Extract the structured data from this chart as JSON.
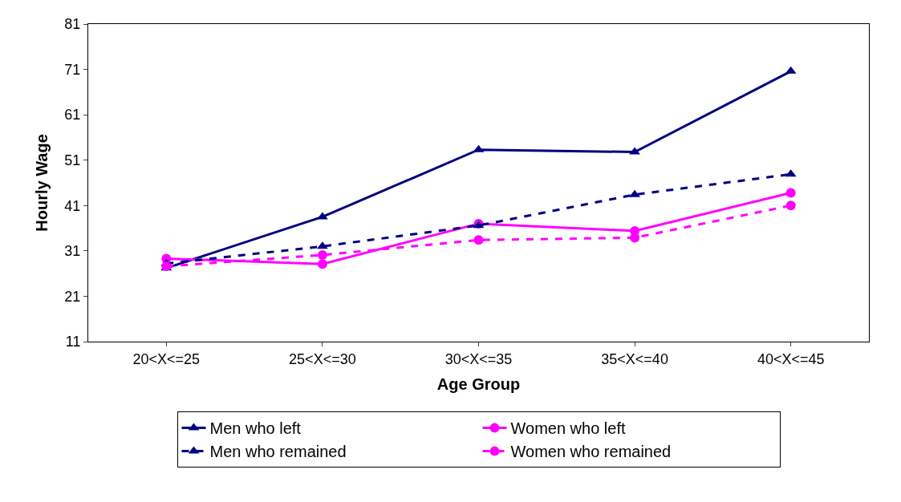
{
  "chart_data": {
    "type": "line",
    "xlabel": "Age Group",
    "ylabel": "Hourly Wage",
    "categories": [
      "20<X<=25",
      "25<X<=30",
      "30<X<=35",
      "35<X<=40",
      "40<X<=45"
    ],
    "ylim": [
      11,
      81
    ],
    "yticks": [
      11,
      21,
      31,
      41,
      51,
      61,
      71,
      81
    ],
    "grid": false,
    "legend": "bottom",
    "series": [
      {
        "name": "Men who left",
        "color": "#000080",
        "marker": "triangle",
        "line_style": "solid",
        "values": [
          27.2,
          38.5,
          53.3,
          52.8,
          70.6
        ]
      },
      {
        "name": "Women who left",
        "color": "#ff00ff",
        "marker": "circle",
        "line_style": "solid",
        "values": [
          29.3,
          28.1,
          37.0,
          35.4,
          43.8
        ]
      },
      {
        "name": "Men who remained",
        "color": "#000080",
        "marker": "triangle",
        "line_style": "dashed",
        "values": [
          28.2,
          32.0,
          36.6,
          43.4,
          47.9
        ]
      },
      {
        "name": "Women who remained",
        "color": "#ff00ff",
        "marker": "circle",
        "line_style": "dashed",
        "values": [
          27.6,
          30.1,
          33.4,
          33.9,
          41.0
        ]
      }
    ]
  }
}
